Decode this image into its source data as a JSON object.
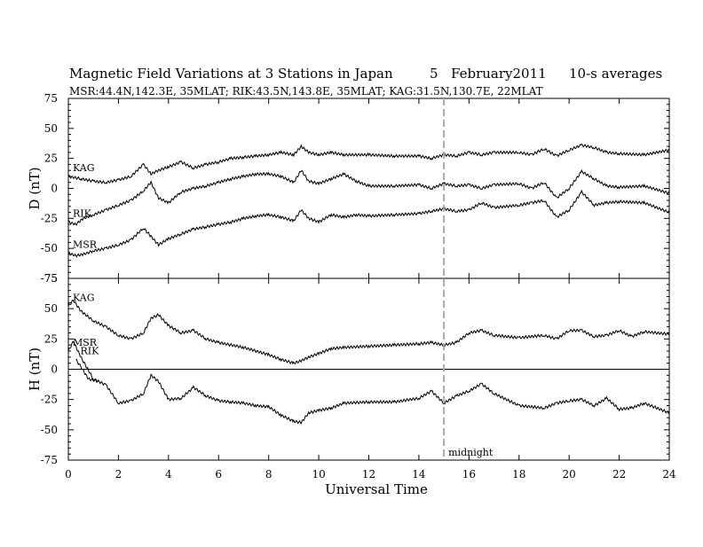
{
  "chart_data": {
    "type": "line",
    "title": "Magnetic Field Variations at 3 Stations in Japan",
    "date_day": "5",
    "date_month_year": "February2011",
    "averaging": "10-s averages",
    "stations_line": "MSR:44.4N,142.3E, 35MLAT;  RIK:43.5N,143.8E, 35MLAT;  KAG:31.5N,130.7E, 22MLAT",
    "xlabel": "Universal Time",
    "xlim": [
      0,
      24
    ],
    "xticks": [
      0,
      2,
      4,
      6,
      8,
      10,
      12,
      14,
      16,
      18,
      20,
      22,
      24
    ],
    "marker_line": {
      "x": 15,
      "label": "midnight",
      "style": "dashed",
      "color": "#aaaaaa"
    },
    "panels": [
      {
        "id": "D",
        "ylabel": "D (nT)",
        "ylim": [
          -75,
          75
        ],
        "yticks": [
          75,
          50,
          25,
          0,
          -25,
          -50,
          -75
        ],
        "zero_line": false,
        "series": [
          {
            "name": "KAG",
            "x": [
              0,
              0.5,
              1,
              1.5,
              2,
              2.5,
              3,
              3.3,
              3.6,
              4,
              4.5,
              5,
              5.5,
              6,
              6.5,
              7,
              7.5,
              8,
              8.5,
              9,
              9.3,
              9.6,
              10,
              10.5,
              11,
              12,
              13,
              14,
              14.5,
              15,
              15.5,
              16,
              16.5,
              17,
              18,
              18.5,
              19,
              19.5,
              20,
              20.5,
              21,
              21.5,
              22,
              23,
              24
            ],
            "values": [
              10,
              8,
              6,
              5,
              7,
              10,
              20,
              12,
              15,
              18,
              22,
              17,
              20,
              22,
              25,
              26,
              27,
              28,
              30,
              28,
              35,
              30,
              28,
              30,
              28,
              28,
              27,
              27,
              25,
              28,
              27,
              30,
              28,
              30,
              30,
              28,
              33,
              27,
              32,
              36,
              34,
              30,
              29,
              28,
              32
            ]
          },
          {
            "name": "RIK",
            "x": [
              0,
              0.3,
              0.6,
              1,
              1.5,
              2,
              2.5,
              3,
              3.3,
              3.6,
              4,
              4.5,
              5,
              5.5,
              6,
              6.5,
              7,
              7.5,
              8,
              8.5,
              9,
              9.3,
              9.6,
              10,
              10.5,
              11,
              11.5,
              12,
              13,
              14,
              14.5,
              15,
              15.5,
              16,
              16.5,
              17,
              18,
              18.5,
              19,
              19.5,
              20,
              20.5,
              21,
              21.5,
              22,
              23,
              24
            ],
            "values": [
              -28,
              -30,
              -25,
              -22,
              -18,
              -14,
              -10,
              -2,
              5,
              -8,
              -12,
              -3,
              0,
              2,
              5,
              8,
              10,
              12,
              12,
              10,
              5,
              15,
              6,
              4,
              8,
              12,
              6,
              2,
              2,
              3,
              0,
              4,
              2,
              3,
              0,
              3,
              4,
              0,
              5,
              -8,
              0,
              14,
              8,
              2,
              1,
              2,
              -4
            ]
          },
          {
            "name": "MSR",
            "x": [
              0,
              0.3,
              0.6,
              1,
              1.5,
              2,
              2.5,
              3,
              3.3,
              3.6,
              4,
              4.5,
              5,
              5.5,
              6,
              6.5,
              7,
              7.5,
              8,
              8.5,
              9,
              9.3,
              9.6,
              10,
              10.5,
              11,
              11.5,
              12,
              13,
              14,
              14.5,
              15,
              15.5,
              16,
              16.5,
              17,
              18,
              18.5,
              19,
              19.5,
              20,
              20.5,
              21,
              21.5,
              22,
              23,
              24
            ],
            "values": [
              -54,
              -56,
              -55,
              -52,
              -50,
              -47,
              -43,
              -33,
              -40,
              -47,
              -42,
              -38,
              -34,
              -32,
              -30,
              -28,
              -25,
              -23,
              -22,
              -24,
              -27,
              -18,
              -25,
              -28,
              -22,
              -24,
              -22,
              -23,
              -22,
              -21,
              -19,
              -17,
              -19,
              -18,
              -12,
              -16,
              -14,
              -12,
              -10,
              -24,
              -18,
              -3,
              -14,
              -12,
              -11,
              -12,
              -20
            ]
          }
        ]
      },
      {
        "id": "H",
        "ylabel": "H (nT)",
        "ylim": [
          -75,
          75
        ],
        "yticks": [
          75,
          50,
          25,
          0,
          -25,
          -50,
          -75
        ],
        "zero_line": true,
        "series": [
          {
            "name": "KAG",
            "x": [
              0,
              0.2,
              0.5,
              1,
              1.5,
              2,
              2.5,
              3,
              3.3,
              3.6,
              4,
              4.5,
              5,
              5.5,
              6,
              7,
              8,
              8.5,
              9,
              9.3,
              9.6,
              10,
              10.5,
              11,
              12,
              13,
              14,
              14.5,
              15,
              15.5,
              16,
              16.5,
              17,
              18,
              19,
              19.5,
              20,
              20.5,
              21,
              21.5,
              22,
              22.5,
              23,
              24
            ],
            "values": [
              52,
              57,
              48,
              40,
              35,
              28,
              25,
              30,
              42,
              45,
              36,
              30,
              32,
              25,
              22,
              18,
              12,
              8,
              5,
              7,
              10,
              13,
              17,
              18,
              19,
              20,
              21,
              22,
              20,
              22,
              30,
              32,
              28,
              26,
              28,
              25,
              32,
              32,
              27,
              28,
              32,
              27,
              31,
              29
            ]
          },
          {
            "name": "MSR",
            "x": [
              0,
              0.2,
              0.5,
              1,
              1.5,
              2,
              2.5,
              3,
              3.3,
              3.6,
              4,
              4.5,
              5,
              5.5,
              6,
              6.5,
              7,
              7.5,
              8,
              8.5,
              9,
              9.3,
              9.6,
              10,
              10.5,
              11,
              12,
              13,
              14,
              14.5,
              15,
              15.5,
              16,
              16.5,
              17,
              18,
              19,
              19.5,
              20,
              20.5,
              21,
              21.5,
              22,
              22.5,
              23,
              24
            ],
            "values": [
              15,
              23,
              10,
              -8,
              -13,
              -28,
              -26,
              -20,
              -5,
              -10,
              -25,
              -24,
              -15,
              -22,
              -26,
              -27,
              -28,
              -30,
              -31,
              -38,
              -43,
              -44,
              -36,
              -34,
              -32,
              -28,
              -27,
              -27,
              -24,
              -18,
              -28,
              -22,
              -18,
              -12,
              -20,
              -30,
              -32,
              -28,
              -26,
              -25,
              -30,
              -24,
              -33,
              -32,
              -28,
              -36
            ]
          },
          {
            "name": "RIK",
            "x": [
              0.3,
              0.5,
              0.8,
              1.2
            ],
            "values": [
              8,
              2,
              -8,
              -10
            ]
          }
        ]
      }
    ],
    "grid": false,
    "legend": "inline labels at left"
  }
}
